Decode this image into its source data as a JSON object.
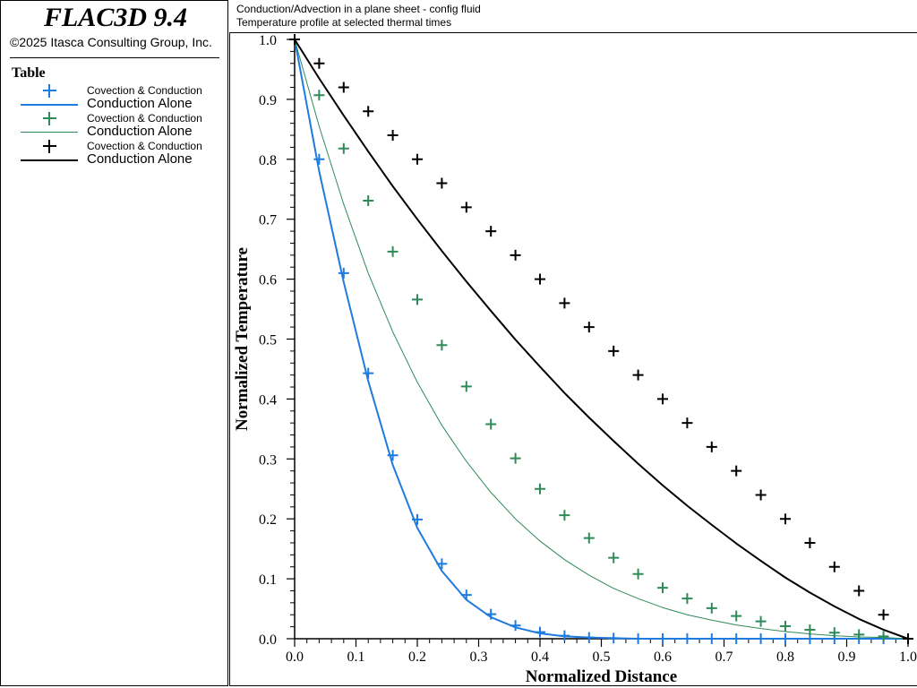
{
  "app": {
    "title": "FLAC3D 9.4",
    "copyright": "©2025 Itasca Consulting Group, Inc."
  },
  "header": {
    "line1": "Conduction/Advection in a plane sheet - config fluid",
    "line2": "Temperature profile at selected thermal times"
  },
  "legend": {
    "heading": "Table",
    "entries": [
      {
        "marker_label": "Covection & Conduction",
        "line_label": "Conduction Alone",
        "color": "#1e7be0",
        "line_width": 2
      },
      {
        "marker_label": "Covection & Conduction",
        "line_label": "Conduction Alone",
        "color": "#2e8b57",
        "line_width": 1
      },
      {
        "marker_label": "Covection & Conduction",
        "line_label": "Conduction Alone",
        "color": "#000000",
        "line_width": 2
      }
    ]
  },
  "chart_data": {
    "type": "scatter",
    "xlabel": "Normalized Distance",
    "ylabel": "Normalized Temperature",
    "xlim": [
      0,
      1
    ],
    "ylim": [
      0,
      1
    ],
    "xticks": [
      "0.0",
      "0.1",
      "0.2",
      "0.3",
      "0.4",
      "0.5",
      "0.6",
      "0.7",
      "0.8",
      "0.9",
      "1.0"
    ],
    "yticks": [
      "0.0",
      "0.1",
      "0.2",
      "0.3",
      "0.4",
      "0.5",
      "0.6",
      "0.7",
      "0.8",
      "0.9",
      "1.0"
    ],
    "marker_x": [
      0.0,
      0.04,
      0.08,
      0.12,
      0.16,
      0.2,
      0.24,
      0.28,
      0.32,
      0.36,
      0.4,
      0.44,
      0.48,
      0.52,
      0.56,
      0.6,
      0.64,
      0.68,
      0.72,
      0.76,
      0.8,
      0.84,
      0.88,
      0.92,
      0.96,
      1.0
    ],
    "line_x": [
      0.0,
      0.04,
      0.08,
      0.12,
      0.16,
      0.2,
      0.24,
      0.28,
      0.32,
      0.36,
      0.4,
      0.44,
      0.48,
      0.52,
      0.56,
      0.6,
      0.64,
      0.68,
      0.72,
      0.76,
      0.8,
      0.84,
      0.88,
      0.92,
      0.96,
      1.0
    ],
    "series": [
      {
        "color": "#1e7be0",
        "marker_y": [
          1.0,
          0.8,
          0.61,
          0.443,
          0.306,
          0.199,
          0.125,
          0.073,
          0.041,
          0.022,
          0.011,
          0.005,
          0.002,
          0.001,
          0.0,
          0.0,
          0.0,
          0.0,
          0.0,
          0.0,
          0.0,
          0.0,
          0.0,
          0.0,
          0.0,
          0.0
        ],
        "line_y": [
          1.0,
          0.78,
          0.595,
          0.43,
          0.29,
          0.185,
          0.113,
          0.065,
          0.036,
          0.019,
          0.009,
          0.004,
          0.002,
          0.001,
          0.0,
          0.0,
          0.0,
          0.0,
          0.0,
          0.0,
          0.0,
          0.0,
          0.0,
          0.0,
          0.0,
          0.0
        ],
        "line_width": 2
      },
      {
        "color": "#2e8b57",
        "marker_y": [
          1.0,
          0.907,
          0.818,
          0.731,
          0.646,
          0.566,
          0.49,
          0.421,
          0.358,
          0.301,
          0.25,
          0.206,
          0.168,
          0.135,
          0.108,
          0.085,
          0.067,
          0.051,
          0.038,
          0.029,
          0.021,
          0.015,
          0.01,
          0.007,
          0.004,
          0.0
        ],
        "line_y": [
          1.0,
          0.855,
          0.725,
          0.61,
          0.512,
          0.428,
          0.356,
          0.296,
          0.244,
          0.2,
          0.163,
          0.132,
          0.106,
          0.084,
          0.067,
          0.052,
          0.04,
          0.031,
          0.023,
          0.017,
          0.012,
          0.008,
          0.005,
          0.003,
          0.002,
          0.0
        ],
        "line_width": 1
      },
      {
        "color": "#000000",
        "marker_y": [
          1.0,
          0.96,
          0.92,
          0.88,
          0.84,
          0.8,
          0.76,
          0.72,
          0.68,
          0.64,
          0.6,
          0.56,
          0.52,
          0.48,
          0.44,
          0.4,
          0.36,
          0.32,
          0.28,
          0.24,
          0.2,
          0.16,
          0.12,
          0.08,
          0.04,
          0.0
        ],
        "line_y": [
          1.0,
          0.935,
          0.873,
          0.813,
          0.755,
          0.7,
          0.647,
          0.596,
          0.547,
          0.499,
          0.454,
          0.41,
          0.369,
          0.33,
          0.292,
          0.256,
          0.222,
          0.19,
          0.159,
          0.13,
          0.102,
          0.077,
          0.054,
          0.033,
          0.015,
          0.0
        ],
        "line_width": 2
      }
    ]
  }
}
